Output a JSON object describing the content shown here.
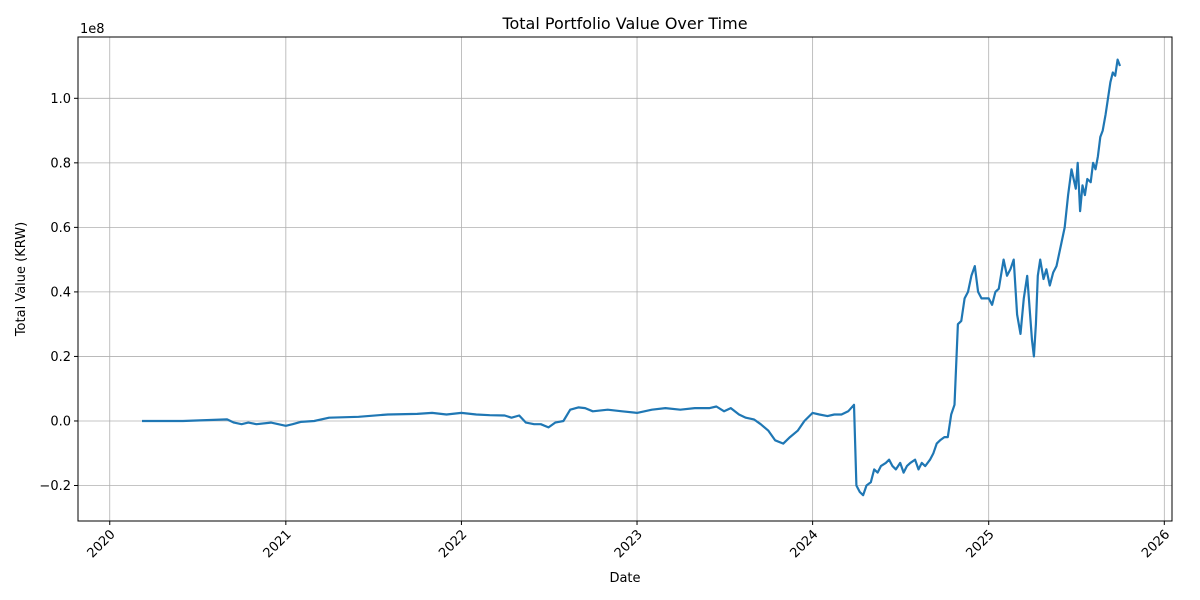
{
  "chart_data": {
    "type": "line",
    "title": "Total Portfolio Value Over Time",
    "xlabel": "Date",
    "ylabel": "Total Value (KRW)",
    "y_offset_label": "1e8",
    "y_scale_factor": 100000000,
    "x_ticks": [
      "2020",
      "2021",
      "2022",
      "2023",
      "2024",
      "2025",
      "2026"
    ],
    "x_tick_dates": [
      "2020-01-01",
      "2021-01-01",
      "2022-01-01",
      "2023-01-01",
      "2024-01-01",
      "2025-01-01",
      "2026-01-01"
    ],
    "y_ticks": [
      "−0.2",
      "0.0",
      "0.2",
      "0.4",
      "0.6",
      "0.8",
      "1.0"
    ],
    "y_tick_values": [
      -0.2,
      0.0,
      0.2,
      0.4,
      0.6,
      0.8,
      1.0
    ],
    "xlim": [
      "2019-10-27",
      "2026-01-17"
    ],
    "ylim": [
      -0.31,
      1.19
    ],
    "grid": true,
    "legend": false,
    "line_color": "#1f77b4",
    "series": [
      {
        "x": [
          "2020-03-08",
          "2020-06-01",
          "2020-09-01",
          "2020-09-15",
          "2020-10-01",
          "2020-10-15",
          "2020-11-01",
          "2020-12-01",
          "2021-01-01",
          "2021-01-15",
          "2021-02-01",
          "2021-03-01",
          "2021-04-01",
          "2021-06-01",
          "2021-08-01",
          "2021-10-01",
          "2021-11-01",
          "2021-12-01",
          "2022-01-01",
          "2022-02-01",
          "2022-03-01",
          "2022-04-01",
          "2022-04-15",
          "2022-05-01",
          "2022-05-15",
          "2022-06-01",
          "2022-06-15",
          "2022-07-01",
          "2022-07-15",
          "2022-08-01",
          "2022-08-15",
          "2022-09-01",
          "2022-09-15",
          "2022-10-01",
          "2022-11-01",
          "2022-12-01",
          "2023-01-01",
          "2023-02-01",
          "2023-03-01",
          "2023-04-01",
          "2023-05-01",
          "2023-06-01",
          "2023-06-15",
          "2023-07-01",
          "2023-07-15",
          "2023-08-01",
          "2023-08-15",
          "2023-09-01",
          "2023-09-15",
          "2023-10-01",
          "2023-10-15",
          "2023-11-01",
          "2023-11-15",
          "2023-12-01",
          "2023-12-15",
          "2024-01-01",
          "2024-01-15",
          "2024-02-01",
          "2024-02-15",
          "2024-03-01",
          "2024-03-15",
          "2024-03-27",
          "2024-04-01",
          "2024-04-08",
          "2024-04-15",
          "2024-04-22",
          "2024-05-01",
          "2024-05-08",
          "2024-05-15",
          "2024-05-22",
          "2024-06-01",
          "2024-06-08",
          "2024-06-15",
          "2024-06-22",
          "2024-07-01",
          "2024-07-08",
          "2024-07-15",
          "2024-07-22",
          "2024-08-01",
          "2024-08-08",
          "2024-08-15",
          "2024-08-22",
          "2024-09-01",
          "2024-09-08",
          "2024-09-15",
          "2024-09-22",
          "2024-10-01",
          "2024-10-08",
          "2024-10-15",
          "2024-10-22",
          "2024-10-29",
          "2024-11-05",
          "2024-11-12",
          "2024-11-19",
          "2024-11-26",
          "2024-12-03",
          "2024-12-10",
          "2024-12-17",
          "2024-12-24",
          "2025-01-01",
          "2025-01-08",
          "2025-01-15",
          "2025-01-22",
          "2025-02-01",
          "2025-02-08",
          "2025-02-15",
          "2025-02-22",
          "2025-03-01",
          "2025-03-08",
          "2025-03-15",
          "2025-03-22",
          "2025-04-01",
          "2025-04-05",
          "2025-04-09",
          "2025-04-13",
          "2025-04-18",
          "2025-04-25",
          "2025-05-01",
          "2025-05-08",
          "2025-05-15",
          "2025-05-22",
          "2025-06-01",
          "2025-06-08",
          "2025-06-15",
          "2025-06-22",
          "2025-07-01",
          "2025-07-05",
          "2025-07-10",
          "2025-07-15",
          "2025-07-20",
          "2025-07-25",
          "2025-08-01",
          "2025-08-06",
          "2025-08-11",
          "2025-08-16",
          "2025-08-21",
          "2025-08-26",
          "2025-09-01",
          "2025-09-06",
          "2025-09-11",
          "2025-09-16",
          "2025-09-21",
          "2025-09-26",
          "2025-10-01"
        ],
        "y": [
          0.0,
          0.0,
          0.005,
          -0.005,
          -0.01,
          -0.005,
          -0.01,
          -0.005,
          -0.015,
          -0.01,
          -0.003,
          0.0,
          0.01,
          0.013,
          0.02,
          0.022,
          0.025,
          0.02,
          0.025,
          0.02,
          0.018,
          0.017,
          0.01,
          0.017,
          -0.005,
          -0.01,
          -0.01,
          -0.02,
          -0.005,
          0.0,
          0.035,
          0.042,
          0.04,
          0.03,
          0.035,
          0.03,
          0.025,
          0.035,
          0.04,
          0.035,
          0.04,
          0.04,
          0.045,
          0.03,
          0.04,
          0.02,
          0.01,
          0.005,
          -0.01,
          -0.03,
          -0.06,
          -0.07,
          -0.05,
          -0.03,
          0.0,
          0.025,
          0.02,
          0.015,
          0.02,
          0.02,
          0.03,
          0.05,
          -0.2,
          -0.22,
          -0.23,
          -0.2,
          -0.19,
          -0.15,
          -0.16,
          -0.14,
          -0.13,
          -0.12,
          -0.14,
          -0.15,
          -0.13,
          -0.16,
          -0.14,
          -0.13,
          -0.12,
          -0.15,
          -0.13,
          -0.14,
          -0.12,
          -0.1,
          -0.07,
          -0.06,
          -0.05,
          -0.05,
          0.02,
          0.05,
          0.3,
          0.31,
          0.38,
          0.4,
          0.45,
          0.48,
          0.4,
          0.38,
          0.38,
          0.38,
          0.36,
          0.4,
          0.41,
          0.5,
          0.45,
          0.47,
          0.5,
          0.33,
          0.27,
          0.38,
          0.45,
          0.25,
          0.2,
          0.3,
          0.45,
          0.5,
          0.44,
          0.47,
          0.42,
          0.46,
          0.48,
          0.55,
          0.6,
          0.7,
          0.78,
          0.72,
          0.8,
          0.65,
          0.73,
          0.7,
          0.75,
          0.74,
          0.8,
          0.78,
          0.82,
          0.88,
          0.9,
          0.95,
          1.0,
          1.05,
          1.08,
          1.07,
          1.12,
          1.1
        ]
      }
    ]
  }
}
